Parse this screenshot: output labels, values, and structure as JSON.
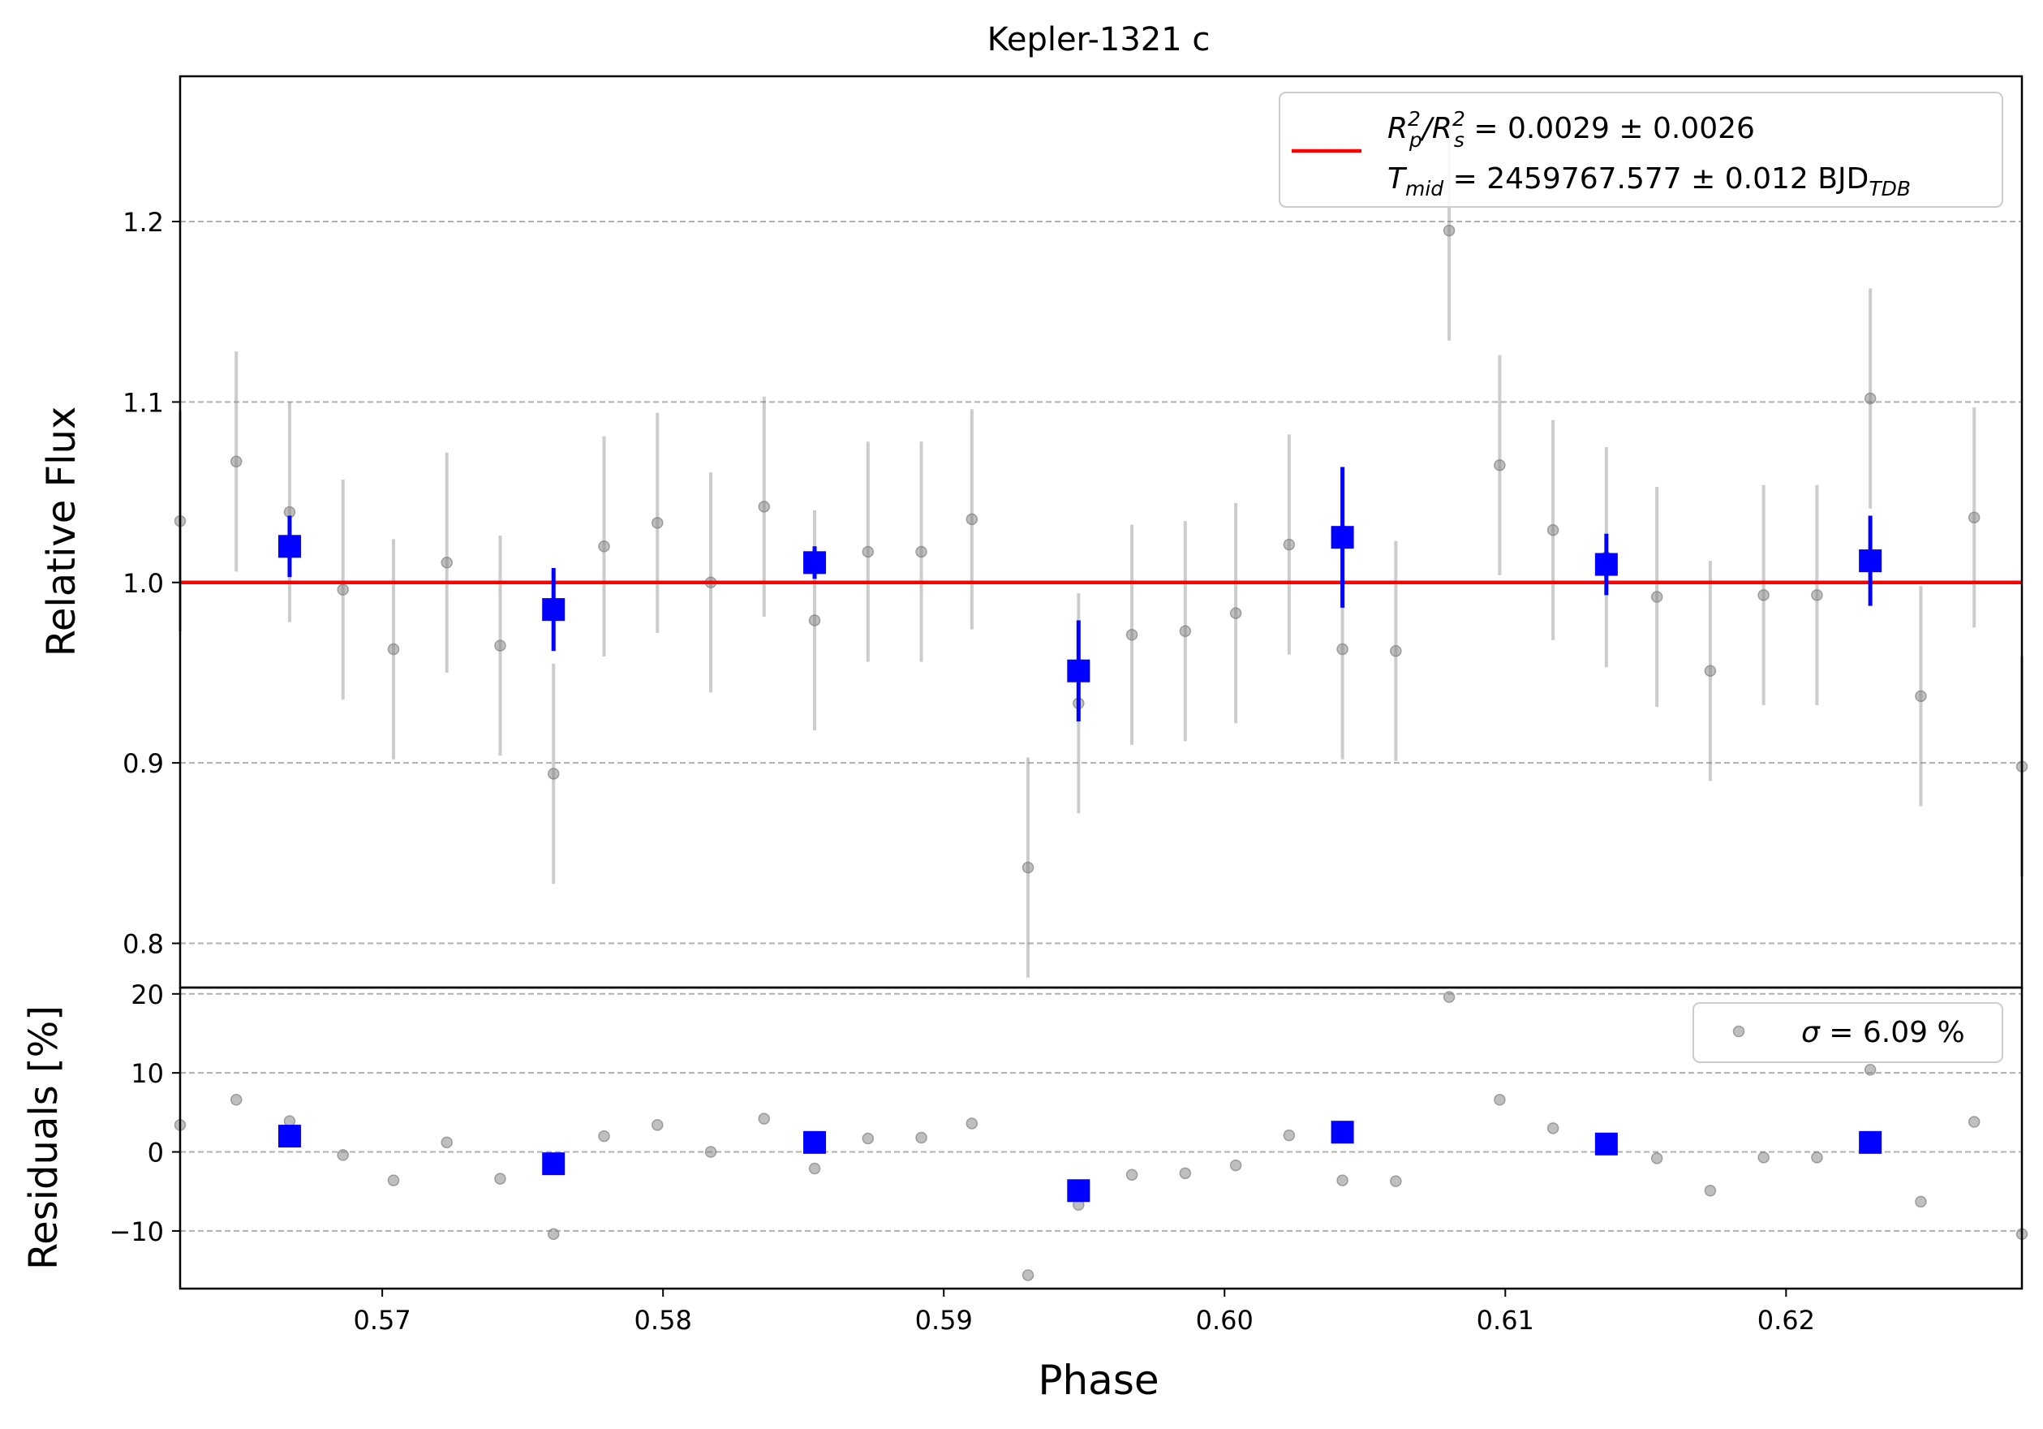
{
  "chart_data": [
    {
      "type": "scatter",
      "title": "Kepler-1321 c",
      "ylabel": "Relative Flux",
      "xlim": [
        0.5628,
        0.6284
      ],
      "ylim": [
        0.7755,
        1.2805
      ],
      "yticks": [
        0.8,
        0.9,
        1.0,
        1.1,
        1.2
      ],
      "ytick_labels": [
        "0.8",
        "0.9",
        "1.0",
        "1.1",
        "1.2"
      ],
      "grid": "horizontal dashed",
      "legend_position": "top-right",
      "legend": {
        "line1": {
          "prefix": "R",
          "sub1": "p",
          "sup1": "2",
          "slash": "/R",
          "sub2": "s",
          "sup2": "2",
          "rest": " = 0.0029 ± 0.0026"
        },
        "line2": {
          "prefix": "T",
          "sub1": "mid",
          "rest": " = 2459767.577 ± 0.012 BJD",
          "sub2": "TDB"
        }
      },
      "model_line": {
        "y": 1.0,
        "color": "#ff0000"
      },
      "series": [
        {
          "kind": "raw",
          "color": "#808080",
          "x": [
            0.5628,
            0.5648,
            0.5667,
            0.5686,
            0.5704,
            0.5723,
            0.5742,
            0.5761,
            0.5779,
            0.5798,
            0.5817,
            0.5836,
            0.5854,
            0.5873,
            0.5892,
            0.591,
            0.593,
            0.5948,
            0.5967,
            0.5986,
            0.6004,
            0.6023,
            0.6042,
            0.6061,
            0.608,
            0.6098,
            0.6117,
            0.6136,
            0.6154,
            0.6173,
            0.6192,
            0.6211,
            0.623,
            0.6248,
            0.6267,
            0.6284
          ],
          "y": [
            1.034,
            1.067,
            1.039,
            0.996,
            0.963,
            1.011,
            0.965,
            0.894,
            1.02,
            1.033,
            1.0,
            1.042,
            0.979,
            1.017,
            1.017,
            1.035,
            0.842,
            0.933,
            0.971,
            0.973,
            0.983,
            1.021,
            0.963,
            0.962,
            1.195,
            1.065,
            1.029,
            1.014,
            0.992,
            0.951,
            0.993,
            0.993,
            1.102,
            0.937,
            1.036,
            0.898
          ],
          "yerr": 0.061
        },
        {
          "kind": "binned",
          "color": "#0000ff",
          "x": [
            0.5667,
            0.5761,
            0.5854,
            0.5948,
            0.6042,
            0.6136,
            0.623
          ],
          "y": [
            1.02,
            0.985,
            1.011,
            0.951,
            1.025,
            1.01,
            1.012
          ],
          "yerr": [
            0.017,
            0.023,
            0.009,
            0.028,
            0.039,
            0.017,
            0.025
          ]
        }
      ]
    },
    {
      "type": "scatter",
      "xlabel": "Phase",
      "ylabel": "Residuals [%]",
      "xlim": [
        0.5628,
        0.6284
      ],
      "ylim": [
        -17.3,
        20.8
      ],
      "yticks": [
        -10,
        0,
        10,
        20
      ],
      "ytick_labels": [
        "−10",
        "0",
        "10",
        "20"
      ],
      "xticks": [
        0.57,
        0.58,
        0.59,
        0.6,
        0.61,
        0.62
      ],
      "xtick_labels": [
        "0.57",
        "0.58",
        "0.59",
        "0.60",
        "0.61",
        "0.62"
      ],
      "grid": "horizontal dashed",
      "legend_position": "top-right",
      "legend": {
        "sigma": "σ",
        "text": " = 6.09 %"
      },
      "series": [
        {
          "kind": "raw",
          "color": "#808080",
          "x": [
            0.5628,
            0.5648,
            0.5667,
            0.5686,
            0.5704,
            0.5723,
            0.5742,
            0.5761,
            0.5779,
            0.5798,
            0.5817,
            0.5836,
            0.5854,
            0.5873,
            0.5892,
            0.591,
            0.593,
            0.5948,
            0.5967,
            0.5986,
            0.6004,
            0.6023,
            0.6042,
            0.6061,
            0.608,
            0.6098,
            0.6117,
            0.6136,
            0.6154,
            0.6173,
            0.6192,
            0.6211,
            0.623,
            0.6248,
            0.6267,
            0.6284
          ],
          "y": [
            3.4,
            6.6,
            3.9,
            -0.4,
            -3.6,
            1.2,
            -3.4,
            -10.4,
            2.0,
            3.4,
            0.0,
            4.2,
            -2.1,
            1.7,
            1.8,
            3.6,
            -15.6,
            -6.7,
            -2.9,
            -2.7,
            -1.7,
            2.1,
            -3.6,
            -3.7,
            19.6,
            6.6,
            3.0,
            1.1,
            -0.8,
            -4.9,
            -0.7,
            -0.7,
            10.4,
            -6.3,
            3.8,
            -10.4
          ]
        },
        {
          "kind": "binned",
          "color": "#0000ff",
          "x": [
            0.5667,
            0.5761,
            0.5854,
            0.5948,
            0.6042,
            0.6136,
            0.623
          ],
          "y": [
            2.0,
            -1.5,
            1.2,
            -4.9,
            2.5,
            1.0,
            1.2
          ]
        }
      ]
    }
  ]
}
